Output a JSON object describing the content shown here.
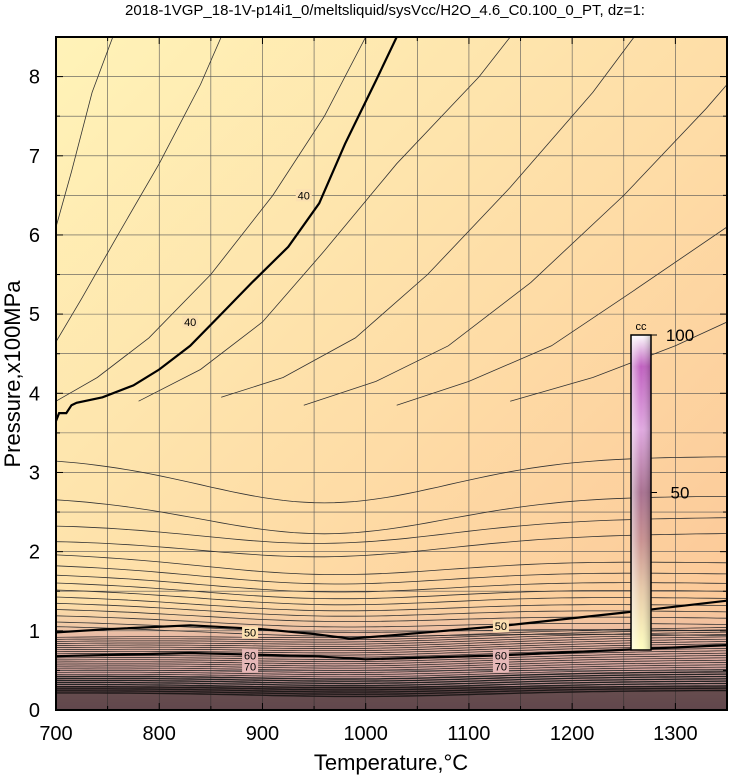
{
  "chart_data": {
    "type": "contour",
    "title": "2018-1VGP_18-1V-p14i1_0/meltsliquid/sysVcc/H2O_4.6_C0.100_0_PT, dz=1:",
    "xlabel": "Temperature,°C",
    "ylabel": "Pressure,x100MPa",
    "xlim": [
      700,
      1350
    ],
    "ylim": [
      0,
      8.5
    ],
    "xticks": [
      700,
      800,
      900,
      1000,
      1100,
      1200,
      1300
    ],
    "yticks": [
      0,
      1,
      2,
      3,
      4,
      5,
      6,
      7,
      8
    ],
    "grid": true,
    "colorbar": {
      "label": "cc",
      "range": [
        0,
        100
      ],
      "ticks": [
        50,
        100
      ],
      "colors": [
        "#ffffc0",
        "#e8c8a8",
        "#c89090",
        "#a87090",
        "#e0a0e0",
        "#c060c0",
        "#ffffff"
      ]
    },
    "background_colors": {
      "top_left": "#fff0b4",
      "bottom_right": "#fbc99a",
      "low_pressure": "#d8a8a8"
    },
    "contour_labels": [
      {
        "value": "40",
        "x": 830,
        "y": 4.9
      },
      {
        "value": "40",
        "x": 940,
        "y": 6.5
      },
      {
        "value": "50",
        "x": 888,
        "y": 0.98
      },
      {
        "value": "50",
        "x": 1131,
        "y": 1.06
      },
      {
        "value": "60",
        "x": 888,
        "y": 0.69
      },
      {
        "value": "60",
        "x": 1131,
        "y": 0.69
      },
      {
        "value": "70",
        "x": 888,
        "y": 0.55
      },
      {
        "value": "70",
        "x": 1131,
        "y": 0.55
      }
    ],
    "major_contours": [
      {
        "level": 40,
        "points": [
          [
            700,
            3.65
          ],
          [
            703,
            3.75
          ],
          [
            710,
            3.75
          ],
          [
            715,
            3.85
          ],
          [
            720,
            3.88
          ],
          [
            745,
            3.95
          ],
          [
            775,
            4.1
          ],
          [
            800,
            4.3
          ],
          [
            830,
            4.6
          ],
          [
            860,
            5.0
          ],
          [
            890,
            5.4
          ],
          [
            925,
            5.85
          ],
          [
            955,
            6.4
          ],
          [
            980,
            7.15
          ],
          [
            1010,
            7.95
          ],
          [
            1030,
            8.5
          ]
        ]
      },
      {
        "level": 50,
        "points": [
          [
            700,
            0.98
          ],
          [
            750,
            1.02
          ],
          [
            830,
            1.07
          ],
          [
            900,
            1.02
          ],
          [
            950,
            0.96
          ],
          [
            985,
            0.9
          ],
          [
            1050,
            0.97
          ],
          [
            1130,
            1.06
          ],
          [
            1250,
            1.23
          ],
          [
            1350,
            1.38
          ]
        ]
      },
      {
        "level": 60,
        "points": [
          [
            700,
            0.68
          ],
          [
            830,
            0.72
          ],
          [
            950,
            0.68
          ],
          [
            1000,
            0.64
          ],
          [
            1130,
            0.69
          ],
          [
            1350,
            0.82
          ]
        ]
      }
    ],
    "minor_contour_families": [
      {
        "kind": "steep",
        "curves": [
          [
            [
              700,
              6.1
            ],
            [
              715,
              6.8
            ],
            [
              735,
              7.8
            ],
            [
              755,
              8.5
            ]
          ],
          [
            [
              700,
              4.65
            ],
            [
              725,
              5.2
            ],
            [
              760,
              6.0
            ],
            [
              800,
              6.9
            ],
            [
              840,
              7.9
            ],
            [
              860,
              8.5
            ]
          ],
          [
            [
              700,
              3.9
            ],
            [
              740,
              4.2
            ],
            [
              790,
              4.7
            ],
            [
              850,
              5.5
            ],
            [
              910,
              6.5
            ],
            [
              960,
              7.5
            ],
            [
              1000,
              8.5
            ]
          ],
          [
            [
              780,
              3.9
            ],
            [
              840,
              4.3
            ],
            [
              900,
              4.9
            ],
            [
              960,
              5.8
            ],
            [
              1030,
              6.9
            ],
            [
              1110,
              8.0
            ],
            [
              1140,
              8.5
            ]
          ],
          [
            [
              860,
              3.95
            ],
            [
              920,
              4.2
            ],
            [
              990,
              4.7
            ],
            [
              1060,
              5.5
            ],
            [
              1140,
              6.6
            ],
            [
              1220,
              7.8
            ],
            [
              1260,
              8.5
            ]
          ],
          [
            [
              940,
              3.85
            ],
            [
              1010,
              4.15
            ],
            [
              1080,
              4.6
            ],
            [
              1160,
              5.4
            ],
            [
              1250,
              6.5
            ],
            [
              1330,
              7.6
            ],
            [
              1350,
              7.9
            ]
          ],
          [
            [
              1030,
              3.85
            ],
            [
              1100,
              4.15
            ],
            [
              1180,
              4.6
            ],
            [
              1260,
              5.3
            ],
            [
              1350,
              6.1
            ]
          ],
          [
            [
              1140,
              3.9
            ],
            [
              1220,
              4.2
            ],
            [
              1300,
              4.6
            ],
            [
              1350,
              4.9
            ]
          ]
        ]
      },
      {
        "kind": "bowl",
        "levels": [
          3.2,
          2.7,
          2.35,
          2.15,
          1.98,
          1.84,
          1.72,
          1.62,
          1.53,
          1.44,
          1.36,
          1.28,
          1.2,
          1.12,
          1.06
        ]
      }
    ]
  }
}
